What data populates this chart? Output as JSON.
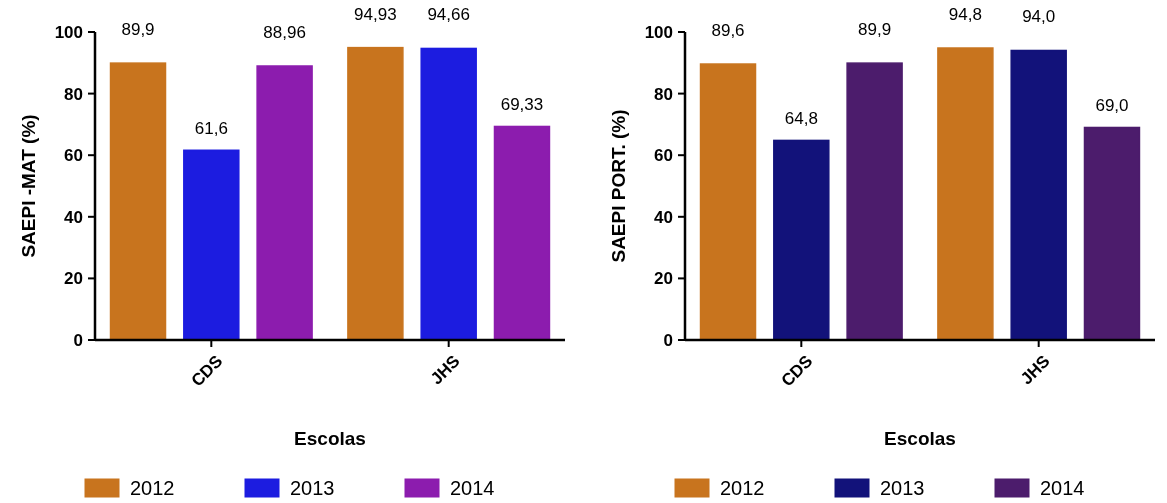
{
  "chart_data": [
    {
      "type": "bar",
      "xlabel": "Escolas",
      "ylabel": "SAEPI -MAT (%)",
      "categories": [
        "CDS",
        "JHS"
      ],
      "ylim": [
        0,
        100
      ],
      "yticks": [
        0,
        20,
        40,
        60,
        80,
        100
      ],
      "legend": "bottom",
      "series": [
        {
          "name": "2012",
          "color": "#c8741e",
          "values": [
            89.9,
            94.93
          ],
          "value_labels": [
            "89,9",
            "94,93"
          ]
        },
        {
          "name": "2013",
          "color": "#1c1ce0",
          "values": [
            61.6,
            94.66
          ],
          "value_labels": [
            "61,6",
            "94,66"
          ]
        },
        {
          "name": "2014",
          "color": "#8c1cae",
          "values": [
            88.96,
            69.33
          ],
          "value_labels": [
            "88,96",
            "69,33"
          ]
        }
      ]
    },
    {
      "type": "bar",
      "xlabel": "Escolas",
      "ylabel": "SAEPI PORT. (%)",
      "categories": [
        "CDS",
        "JHS"
      ],
      "ylim": [
        0,
        100
      ],
      "yticks": [
        0,
        20,
        40,
        60,
        80,
        100
      ],
      "legend": "bottom",
      "series": [
        {
          "name": "2012",
          "color": "#c8741e",
          "values": [
            89.6,
            94.8
          ],
          "value_labels": [
            "89,6",
            "94,8"
          ]
        },
        {
          "name": "2013",
          "color": "#12127a",
          "values": [
            64.8,
            94.0
          ],
          "value_labels": [
            "64,8",
            "94,0"
          ]
        },
        {
          "name": "2014",
          "color": "#4c1c6c",
          "values": [
            89.9,
            69.0
          ],
          "value_labels": [
            "89,9",
            "69,0"
          ]
        }
      ]
    }
  ]
}
